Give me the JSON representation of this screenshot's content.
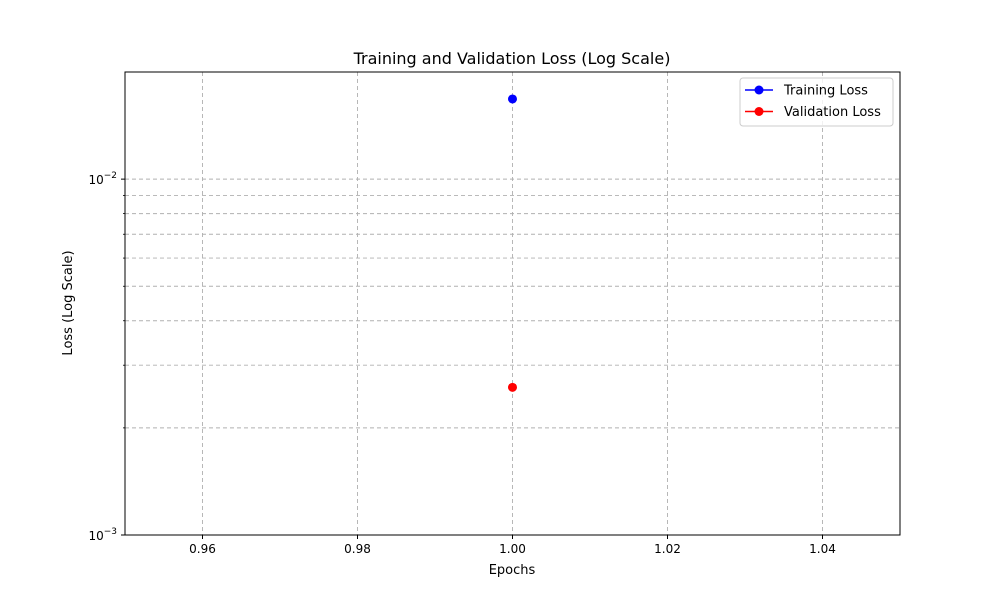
{
  "chart_data": {
    "type": "line",
    "title": "Training and Validation Loss (Log Scale)",
    "xlabel": "Epochs",
    "ylabel": "Loss (Log Scale)",
    "xlim": [
      0.95,
      1.05
    ],
    "ylim": [
      0.001,
      0.02
    ],
    "yscale": "log",
    "x_ticks": [
      0.96,
      0.98,
      1.0,
      1.02,
      1.04
    ],
    "x_tick_labels": [
      "0.96",
      "0.98",
      "1.00",
      "1.02",
      "1.04"
    ],
    "y_major_ticks": [
      0.001,
      0.01
    ],
    "y_tick_labels": [
      {
        "base": "10",
        "exp": "−3"
      },
      {
        "base": "10",
        "exp": "−2"
      }
    ],
    "y_minor_ticks": [
      0.002,
      0.003,
      0.004,
      0.005,
      0.006,
      0.007,
      0.008,
      0.009
    ],
    "grid": true,
    "legend_position": "top-right",
    "series": [
      {
        "name": "Training Loss",
        "color": "#0000ff",
        "x": [
          1.0
        ],
        "y": [
          0.0168
        ]
      },
      {
        "name": "Validation Loss",
        "color": "#ff0000",
        "x": [
          1.0
        ],
        "y": [
          0.0026
        ]
      }
    ]
  }
}
